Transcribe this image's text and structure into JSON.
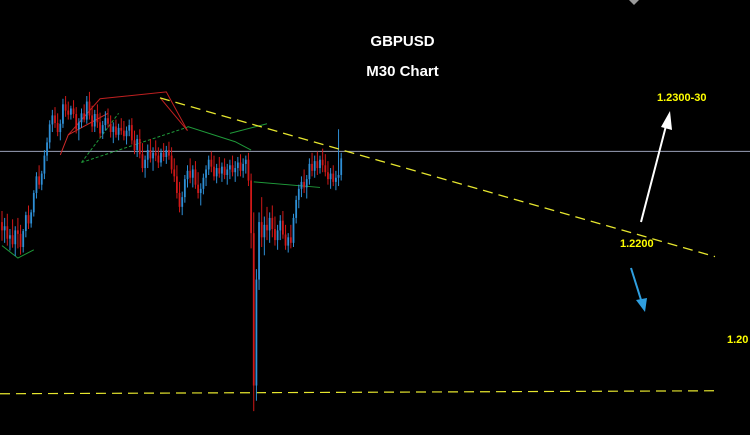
{
  "chart_data": {
    "type": "candlestick",
    "title": "GBPUSD",
    "subtitle": "M30 Chart",
    "ylim": [
      1.1955,
      1.2482
    ],
    "bull_color": "#2e8fd6",
    "bear_color": "#d01818",
    "candles": [
      {
        "o": 1.2248,
        "h": 1.2264,
        "l": 1.2221,
        "c": 1.2236
      },
      {
        "o": 1.2236,
        "h": 1.2254,
        "l": 1.2218,
        "c": 1.2242
      },
      {
        "o": 1.2242,
        "h": 1.226,
        "l": 1.2214,
        "c": 1.2224
      },
      {
        "o": 1.2224,
        "h": 1.2238,
        "l": 1.2207,
        "c": 1.2229
      },
      {
        "o": 1.2229,
        "h": 1.2252,
        "l": 1.2211,
        "c": 1.2216
      },
      {
        "o": 1.2216,
        "h": 1.2242,
        "l": 1.2199,
        "c": 1.2236
      },
      {
        "o": 1.2236,
        "h": 1.2254,
        "l": 1.221,
        "c": 1.2231
      },
      {
        "o": 1.2231,
        "h": 1.2244,
        "l": 1.2201,
        "c": 1.2212
      },
      {
        "o": 1.2212,
        "h": 1.2238,
        "l": 1.2204,
        "c": 1.2235
      },
      {
        "o": 1.2235,
        "h": 1.2263,
        "l": 1.2226,
        "c": 1.2258
      },
      {
        "o": 1.2258,
        "h": 1.2272,
        "l": 1.2238,
        "c": 1.2246
      },
      {
        "o": 1.2246,
        "h": 1.2266,
        "l": 1.224,
        "c": 1.2262
      },
      {
        "o": 1.2262,
        "h": 1.2294,
        "l": 1.2256,
        "c": 1.229
      },
      {
        "o": 1.229,
        "h": 1.232,
        "l": 1.2282,
        "c": 1.2314
      },
      {
        "o": 1.2314,
        "h": 1.233,
        "l": 1.2296,
        "c": 1.2302
      },
      {
        "o": 1.2302,
        "h": 1.2322,
        "l": 1.2294,
        "c": 1.2318
      },
      {
        "o": 1.2318,
        "h": 1.2352,
        "l": 1.231,
        "c": 1.2344
      },
      {
        "o": 1.2344,
        "h": 1.237,
        "l": 1.2336,
        "c": 1.2363
      },
      {
        "o": 1.2363,
        "h": 1.2395,
        "l": 1.2354,
        "c": 1.2389
      },
      {
        "o": 1.2389,
        "h": 1.241,
        "l": 1.2378,
        "c": 1.2402
      },
      {
        "o": 1.2402,
        "h": 1.2414,
        "l": 1.2384,
        "c": 1.2391
      },
      {
        "o": 1.2391,
        "h": 1.2405,
        "l": 1.2372,
        "c": 1.2378
      },
      {
        "o": 1.2378,
        "h": 1.2396,
        "l": 1.2366,
        "c": 1.239
      },
      {
        "o": 1.239,
        "h": 1.2426,
        "l": 1.2384,
        "c": 1.2418
      },
      {
        "o": 1.2418,
        "h": 1.243,
        "l": 1.24,
        "c": 1.2409
      },
      {
        "o": 1.2409,
        "h": 1.2422,
        "l": 1.2396,
        "c": 1.2403
      },
      {
        "o": 1.2403,
        "h": 1.2416,
        "l": 1.2396,
        "c": 1.2412
      },
      {
        "o": 1.2412,
        "h": 1.2424,
        "l": 1.2398,
        "c": 1.2404
      },
      {
        "o": 1.2404,
        "h": 1.2414,
        "l": 1.2376,
        "c": 1.2382
      },
      {
        "o": 1.2382,
        "h": 1.2398,
        "l": 1.2366,
        "c": 1.2392
      },
      {
        "o": 1.2392,
        "h": 1.2412,
        "l": 1.2384,
        "c": 1.2405
      },
      {
        "o": 1.2405,
        "h": 1.2418,
        "l": 1.2392,
        "c": 1.2396
      },
      {
        "o": 1.2396,
        "h": 1.243,
        "l": 1.239,
        "c": 1.2422
      },
      {
        "o": 1.2422,
        "h": 1.2436,
        "l": 1.2396,
        "c": 1.2402
      },
      {
        "o": 1.2402,
        "h": 1.2416,
        "l": 1.2378,
        "c": 1.2386
      },
      {
        "o": 1.2386,
        "h": 1.241,
        "l": 1.2378,
        "c": 1.2404
      },
      {
        "o": 1.2404,
        "h": 1.2418,
        "l": 1.2384,
        "c": 1.2392
      },
      {
        "o": 1.2392,
        "h": 1.2406,
        "l": 1.237,
        "c": 1.2376
      },
      {
        "o": 1.2376,
        "h": 1.2394,
        "l": 1.2368,
        "c": 1.2388
      },
      {
        "o": 1.2388,
        "h": 1.2408,
        "l": 1.238,
        "c": 1.2398
      },
      {
        "o": 1.2398,
        "h": 1.2412,
        "l": 1.2384,
        "c": 1.239
      },
      {
        "o": 1.239,
        "h": 1.2402,
        "l": 1.237,
        "c": 1.2378
      },
      {
        "o": 1.2378,
        "h": 1.2392,
        "l": 1.2362,
        "c": 1.2386
      },
      {
        "o": 1.2386,
        "h": 1.2396,
        "l": 1.237,
        "c": 1.2374
      },
      {
        "o": 1.2374,
        "h": 1.239,
        "l": 1.2366,
        "c": 1.2384
      },
      {
        "o": 1.2384,
        "h": 1.2398,
        "l": 1.2374,
        "c": 1.238
      },
      {
        "o": 1.238,
        "h": 1.2394,
        "l": 1.2366,
        "c": 1.2372
      },
      {
        "o": 1.2372,
        "h": 1.2386,
        "l": 1.236,
        "c": 1.238
      },
      {
        "o": 1.238,
        "h": 1.2396,
        "l": 1.2372,
        "c": 1.2388
      },
      {
        "o": 1.2388,
        "h": 1.2398,
        "l": 1.236,
        "c": 1.2366
      },
      {
        "o": 1.2366,
        "h": 1.238,
        "l": 1.2346,
        "c": 1.2352
      },
      {
        "o": 1.2352,
        "h": 1.2374,
        "l": 1.2342,
        "c": 1.2368
      },
      {
        "o": 1.2368,
        "h": 1.2382,
        "l": 1.234,
        "c": 1.2346
      },
      {
        "o": 1.2346,
        "h": 1.2362,
        "l": 1.232,
        "c": 1.2326
      },
      {
        "o": 1.2326,
        "h": 1.2344,
        "l": 1.2312,
        "c": 1.2338
      },
      {
        "o": 1.2338,
        "h": 1.236,
        "l": 1.2326,
        "c": 1.2352
      },
      {
        "o": 1.2352,
        "h": 1.2368,
        "l": 1.2334,
        "c": 1.234
      },
      {
        "o": 1.234,
        "h": 1.2356,
        "l": 1.2322,
        "c": 1.2348
      },
      {
        "o": 1.2348,
        "h": 1.2366,
        "l": 1.2336,
        "c": 1.2344
      },
      {
        "o": 1.2344,
        "h": 1.2356,
        "l": 1.2326,
        "c": 1.2334
      },
      {
        "o": 1.2334,
        "h": 1.2354,
        "l": 1.2328,
        "c": 1.2348
      },
      {
        "o": 1.2348,
        "h": 1.2362,
        "l": 1.2336,
        "c": 1.2342
      },
      {
        "o": 1.2342,
        "h": 1.2358,
        "l": 1.2332,
        "c": 1.2352
      },
      {
        "o": 1.2352,
        "h": 1.2364,
        "l": 1.2338,
        "c": 1.2344
      },
      {
        "o": 1.2344,
        "h": 1.2356,
        "l": 1.2318,
        "c": 1.2324
      },
      {
        "o": 1.2324,
        "h": 1.234,
        "l": 1.2306,
        "c": 1.2314
      },
      {
        "o": 1.2314,
        "h": 1.233,
        "l": 1.2282,
        "c": 1.229
      },
      {
        "o": 1.229,
        "h": 1.2306,
        "l": 1.2262,
        "c": 1.227
      },
      {
        "o": 1.227,
        "h": 1.2292,
        "l": 1.2258,
        "c": 1.2284
      },
      {
        "o": 1.2284,
        "h": 1.2316,
        "l": 1.2276,
        "c": 1.231
      },
      {
        "o": 1.231,
        "h": 1.233,
        "l": 1.2298,
        "c": 1.2322
      },
      {
        "o": 1.2322,
        "h": 1.234,
        "l": 1.2304,
        "c": 1.2312
      },
      {
        "o": 1.2312,
        "h": 1.233,
        "l": 1.2298,
        "c": 1.2324
      },
      {
        "o": 1.2324,
        "h": 1.2336,
        "l": 1.2296,
        "c": 1.2302
      },
      {
        "o": 1.2302,
        "h": 1.232,
        "l": 1.2282,
        "c": 1.229
      },
      {
        "o": 1.229,
        "h": 1.2304,
        "l": 1.2272,
        "c": 1.2296
      },
      {
        "o": 1.2296,
        "h": 1.2318,
        "l": 1.2288,
        "c": 1.2312
      },
      {
        "o": 1.2312,
        "h": 1.233,
        "l": 1.23,
        "c": 1.2324
      },
      {
        "o": 1.2324,
        "h": 1.2344,
        "l": 1.2316,
        "c": 1.2338
      },
      {
        "o": 1.2338,
        "h": 1.235,
        "l": 1.232,
        "c": 1.2328
      },
      {
        "o": 1.2328,
        "h": 1.2344,
        "l": 1.2308,
        "c": 1.2314
      },
      {
        "o": 1.2314,
        "h": 1.2332,
        "l": 1.2304,
        "c": 1.2326
      },
      {
        "o": 1.2326,
        "h": 1.2342,
        "l": 1.2312,
        "c": 1.2318
      },
      {
        "o": 1.2318,
        "h": 1.2334,
        "l": 1.2306,
        "c": 1.2328
      },
      {
        "o": 1.2328,
        "h": 1.234,
        "l": 1.231,
        "c": 1.2316
      },
      {
        "o": 1.2316,
        "h": 1.2332,
        "l": 1.2302,
        "c": 1.2324
      },
      {
        "o": 1.2324,
        "h": 1.2338,
        "l": 1.231,
        "c": 1.233
      },
      {
        "o": 1.233,
        "h": 1.2344,
        "l": 1.2314,
        "c": 1.232
      },
      {
        "o": 1.232,
        "h": 1.2336,
        "l": 1.2306,
        "c": 1.2326
      },
      {
        "o": 1.2326,
        "h": 1.2342,
        "l": 1.2314,
        "c": 1.2334
      },
      {
        "o": 1.2334,
        "h": 1.2346,
        "l": 1.2314,
        "c": 1.2322
      },
      {
        "o": 1.2322,
        "h": 1.234,
        "l": 1.2312,
        "c": 1.2332
      },
      {
        "o": 1.2332,
        "h": 1.2344,
        "l": 1.2318,
        "c": 1.2338
      },
      {
        "o": 1.2338,
        "h": 1.2348,
        "l": 1.23,
        "c": 1.2308
      },
      {
        "o": 1.2308,
        "h": 1.2318,
        "l": 1.221,
        "c": 1.2232
      },
      {
        "o": 1.2232,
        "h": 1.2262,
        "l": 1.1975,
        "c": 1.2012
      },
      {
        "o": 1.2012,
        "h": 1.218,
        "l": 1.199,
        "c": 1.2165
      },
      {
        "o": 1.2165,
        "h": 1.2262,
        "l": 1.215,
        "c": 1.2248
      },
      {
        "o": 1.2248,
        "h": 1.2284,
        "l": 1.2212,
        "c": 1.2226
      },
      {
        "o": 1.2226,
        "h": 1.2256,
        "l": 1.22,
        "c": 1.2244
      },
      {
        "o": 1.2244,
        "h": 1.227,
        "l": 1.2222,
        "c": 1.2236
      },
      {
        "o": 1.2236,
        "h": 1.2262,
        "l": 1.2218,
        "c": 1.2254
      },
      {
        "o": 1.2254,
        "h": 1.2272,
        "l": 1.2226,
        "c": 1.2238
      },
      {
        "o": 1.2238,
        "h": 1.2256,
        "l": 1.2214,
        "c": 1.2222
      },
      {
        "o": 1.2222,
        "h": 1.2244,
        "l": 1.2208,
        "c": 1.2236
      },
      {
        "o": 1.2236,
        "h": 1.2258,
        "l": 1.2222,
        "c": 1.225
      },
      {
        "o": 1.225,
        "h": 1.2264,
        "l": 1.2224,
        "c": 1.223
      },
      {
        "o": 1.223,
        "h": 1.2244,
        "l": 1.2208,
        "c": 1.2214
      },
      {
        "o": 1.2214,
        "h": 1.2232,
        "l": 1.2204,
        "c": 1.2226
      },
      {
        "o": 1.2226,
        "h": 1.2244,
        "l": 1.221,
        "c": 1.2218
      },
      {
        "o": 1.2218,
        "h": 1.226,
        "l": 1.2212,
        "c": 1.2254
      },
      {
        "o": 1.2254,
        "h": 1.2286,
        "l": 1.2246,
        "c": 1.228
      },
      {
        "o": 1.228,
        "h": 1.2302,
        "l": 1.2268,
        "c": 1.2296
      },
      {
        "o": 1.2296,
        "h": 1.2314,
        "l": 1.2284,
        "c": 1.2306
      },
      {
        "o": 1.2306,
        "h": 1.2324,
        "l": 1.229,
        "c": 1.2298
      },
      {
        "o": 1.2298,
        "h": 1.2316,
        "l": 1.2282,
        "c": 1.231
      },
      {
        "o": 1.231,
        "h": 1.234,
        "l": 1.2302,
        "c": 1.2332
      },
      {
        "o": 1.2332,
        "h": 1.2348,
        "l": 1.2314,
        "c": 1.2322
      },
      {
        "o": 1.2322,
        "h": 1.2344,
        "l": 1.2312,
        "c": 1.2336
      },
      {
        "o": 1.2336,
        "h": 1.235,
        "l": 1.2316,
        "c": 1.2326
      },
      {
        "o": 1.2326,
        "h": 1.2344,
        "l": 1.2318,
        "c": 1.2338
      },
      {
        "o": 1.2338,
        "h": 1.2354,
        "l": 1.232,
        "c": 1.233
      },
      {
        "o": 1.233,
        "h": 1.2346,
        "l": 1.2314,
        "c": 1.232
      },
      {
        "o": 1.232,
        "h": 1.2336,
        "l": 1.2302,
        "c": 1.231
      },
      {
        "o": 1.231,
        "h": 1.2326,
        "l": 1.2296,
        "c": 1.2318
      },
      {
        "o": 1.2318,
        "h": 1.233,
        "l": 1.23,
        "c": 1.2306
      },
      {
        "o": 1.2306,
        "h": 1.2322,
        "l": 1.2294,
        "c": 1.2312
      },
      {
        "o": 1.2312,
        "h": 1.2382,
        "l": 1.23,
        "c": 1.2316
      },
      {
        "o": 1.2316,
        "h": 1.2348,
        "l": 1.2308,
        "c": 1.234
      }
    ],
    "horizontal_line": 1.235,
    "support_level": 1.2003,
    "trendline": {
      "x1": 53.5,
      "y1": 1.2434,
      "x2": 233.5,
      "y2": 1.2237
    },
    "annotations": {
      "target_up": "1.2300-30",
      "target_down": "1.2200",
      "support_label": "1.20"
    },
    "colors": {
      "trendline": "#e6e62e",
      "up_arrow": "#ffffff",
      "down_arrow": "#2f9fe0",
      "label": "#ffff00",
      "horizontal_line": "#9aa0b8"
    }
  }
}
